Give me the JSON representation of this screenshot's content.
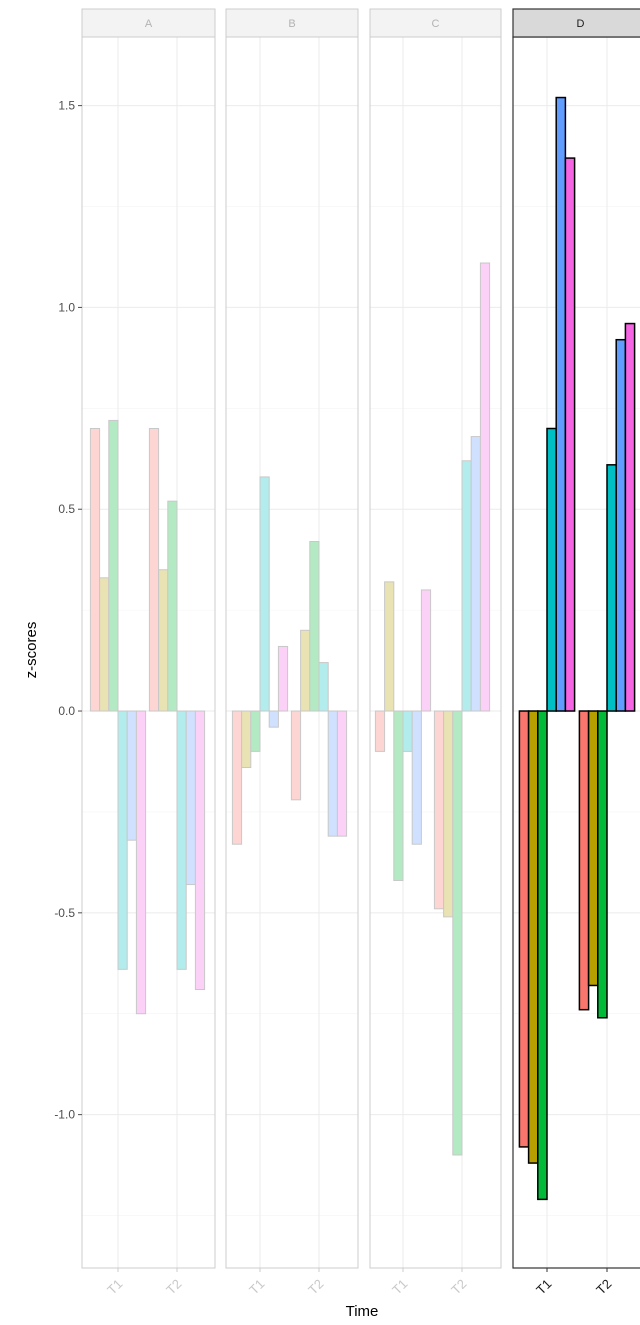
{
  "chart_data": {
    "type": "bar",
    "facet_layout": "columns",
    "xlabel": "Time",
    "ylabel": "z-scores",
    "ylim": [
      -1.38,
      1.67
    ],
    "yticks": [
      -1.0,
      -0.5,
      0.0,
      0.5,
      1.0,
      1.5
    ],
    "ytick_labels": [
      "-1.0",
      "-0.5",
      "0.0",
      "0.5",
      "1.0",
      "1.5"
    ],
    "categories": [
      "T1",
      "T2"
    ],
    "series_colors": [
      "#F8766D",
      "#B79F00",
      "#00BA38",
      "#00BFC4",
      "#619CFF",
      "#F564E3"
    ],
    "grid": true,
    "legend": "none",
    "panels": [
      {
        "label": "A",
        "faded": true,
        "values": [
          [
            0.7,
            0.33,
            0.72,
            -0.64,
            -0.32,
            -0.75
          ],
          [
            0.7,
            0.35,
            0.52,
            -0.64,
            -0.43,
            -0.69
          ]
        ]
      },
      {
        "label": "B",
        "faded": true,
        "values": [
          [
            -0.33,
            -0.14,
            -0.1,
            0.58,
            -0.04,
            0.16
          ],
          [
            -0.22,
            0.2,
            0.42,
            0.12,
            -0.31,
            -0.31
          ]
        ]
      },
      {
        "label": "C",
        "faded": true,
        "values": [
          [
            -0.1,
            0.32,
            -0.42,
            -0.1,
            -0.33,
            0.3
          ],
          [
            -0.49,
            -0.51,
            -1.1,
            0.62,
            0.68,
            1.11
          ]
        ]
      },
      {
        "label": "D",
        "faded": false,
        "values": [
          [
            -1.08,
            -1.12,
            -1.21,
            0.7,
            1.52,
            1.37
          ],
          [
            -0.74,
            -0.68,
            -0.76,
            0.61,
            0.92,
            0.96
          ]
        ]
      }
    ]
  }
}
